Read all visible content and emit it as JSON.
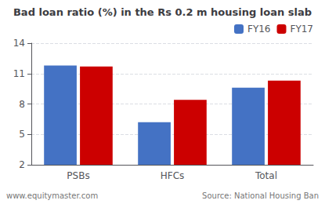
{
  "chart_data": {
    "type": "bar",
    "title": "Bad loan ratio (%) in the Rs 0.2 m housing loan slab",
    "categories": [
      "PSBs",
      "HFCs",
      "Total"
    ],
    "series": [
      {
        "name": "FY16",
        "color": "#4472C4",
        "values": [
          11.8,
          6.2,
          9.6
        ]
      },
      {
        "name": "FY17",
        "color": "#CC0000",
        "values": [
          11.7,
          8.4,
          10.3
        ]
      }
    ],
    "ylim": [
      2,
      14
    ],
    "yticks": [
      2,
      5,
      8,
      11,
      14
    ],
    "grid": true,
    "legend": "upper right",
    "annotations": [
      "www.equitymaster.com",
      "Source: National Housing Ban"
    ]
  }
}
